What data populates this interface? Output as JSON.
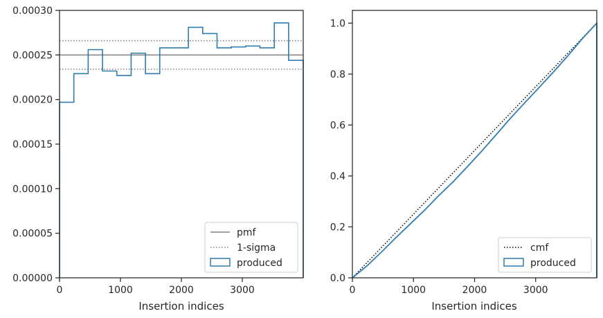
{
  "chart_data": [
    {
      "type": "step-histogram",
      "xlabel": "Insertion indices",
      "ylabel": "",
      "xlim": [
        0,
        4000
      ],
      "ylim": [
        0,
        0.0003
      ],
      "x_ticks": [
        0,
        1000,
        2000,
        3000
      ],
      "x_tick_labels": [
        "0",
        "1000",
        "2000",
        "3000"
      ],
      "y_ticks": [
        0,
        5e-05,
        0.0001,
        0.00015,
        0.0002,
        0.00025,
        0.0003
      ],
      "y_tick_labels": [
        "0.00000",
        "0.00005",
        "0.00010",
        "0.00015",
        "0.00020",
        "0.00025",
        "0.00030"
      ],
      "bin_edges": [
        0,
        235,
        470,
        705,
        940,
        1175,
        1410,
        1645,
        1880,
        2115,
        2350,
        2585,
        2820,
        3055,
        3290,
        3525,
        3760,
        4000
      ],
      "series": [
        {
          "name": "produced",
          "color": "#2e7bb0",
          "values": [
            0.000197,
            0.000229,
            0.000256,
            0.000232,
            0.000227,
            0.000252,
            0.000229,
            0.000258,
            0.000258,
            0.000281,
            0.000274,
            0.000258,
            0.000259,
            0.00026,
            0.000258,
            0.000286,
            0.000244
          ]
        }
      ],
      "hlines": [
        {
          "name": "pmf",
          "y": 0.00025,
          "color": "#808080",
          "style": "solid"
        },
        {
          "name": "1-sigma",
          "y": 0.000266,
          "color": "#808080",
          "style": "dotted"
        },
        {
          "name": "1-sigma-lower",
          "y": 0.000234,
          "color": "#808080",
          "style": "dotted"
        }
      ],
      "legend": {
        "placement": "lower right",
        "entries": [
          {
            "label": "pmf",
            "kind": "line-solid",
            "color": "#808080"
          },
          {
            "label": "1-sigma",
            "kind": "line-dotted",
            "color": "#808080"
          },
          {
            "label": "produced",
            "kind": "patch",
            "color": "#2e7bb0"
          }
        ]
      }
    },
    {
      "type": "line",
      "xlabel": "Insertion indices",
      "ylabel": "",
      "xlim": [
        0,
        4000
      ],
      "ylim": [
        0,
        1.05
      ],
      "x_ticks": [
        0,
        1000,
        2000,
        3000
      ],
      "x_tick_labels": [
        "0",
        "1000",
        "2000",
        "3000"
      ],
      "y_ticks": [
        0,
        0.2,
        0.4,
        0.6,
        0.8,
        1.0
      ],
      "y_tick_labels": [
        "0.0",
        "0.2",
        "0.4",
        "0.6",
        "0.8",
        "1.0"
      ],
      "series": [
        {
          "name": "cmf",
          "color": "#000000",
          "style": "dotted",
          "x": [
            0,
            4000
          ],
          "y": [
            0,
            1.0
          ]
        },
        {
          "name": "produced",
          "color": "#2e7bb0",
          "style": "solid",
          "x": [
            0,
            235,
            470,
            705,
            940,
            1175,
            1410,
            1645,
            1880,
            2115,
            2350,
            2585,
            2820,
            3055,
            3290,
            3525,
            3760,
            4000,
            4000
          ],
          "y": [
            0,
            0.046,
            0.1,
            0.156,
            0.21,
            0.264,
            0.322,
            0.376,
            0.436,
            0.497,
            0.561,
            0.626,
            0.687,
            0.747,
            0.808,
            0.871,
            0.938,
            1.0,
            0
          ]
        }
      ],
      "legend": {
        "placement": "lower right",
        "entries": [
          {
            "label": "cmf",
            "kind": "line-dotted",
            "color": "#000000"
          },
          {
            "label": "produced",
            "kind": "patch",
            "color": "#2e7bb0"
          }
        ]
      }
    }
  ]
}
